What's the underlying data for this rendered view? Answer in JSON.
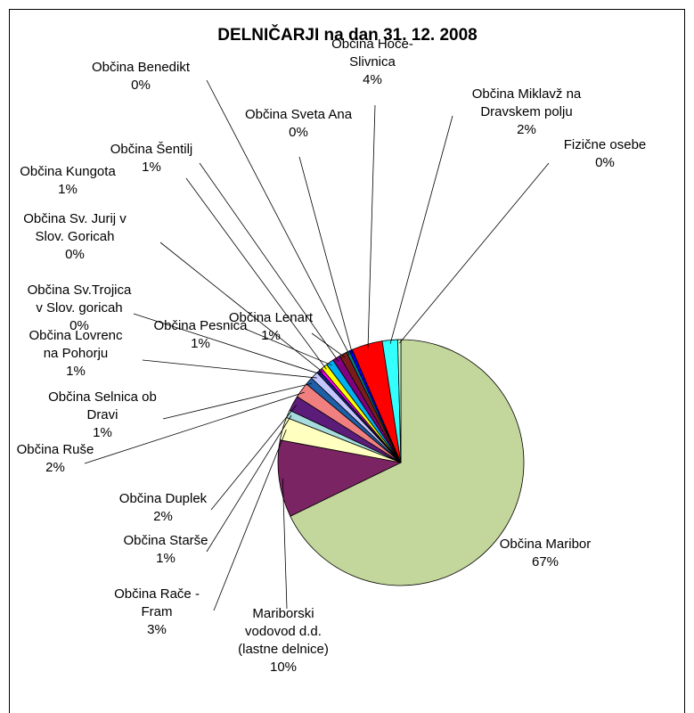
{
  "chart_data": {
    "type": "pie",
    "title": "DELNIČARJI na dan 31. 12. 2008",
    "slices": [
      {
        "label": [
          "Občina Maribor",
          "67%"
        ],
        "value": 67,
        "color": "#c3d69b"
      },
      {
        "label": [
          "Mariborski",
          "vodovod d.d.",
          "(lastne delnice)",
          "10%"
        ],
        "value": 10,
        "color": "#7b2463"
      },
      {
        "label": [
          "Občina  Rače -",
          "Fram",
          "3%"
        ],
        "value": 3,
        "color": "#ffffc0"
      },
      {
        "label": [
          "Občina  Starše",
          "1%"
        ],
        "value": 1,
        "color": "#a6dcdc"
      },
      {
        "label": [
          "Občina  Duplek",
          "2%"
        ],
        "value": 2,
        "color": "#5c1c7a"
      },
      {
        "label": [
          "Občina Ruše",
          "2%"
        ],
        "value": 2,
        "color": "#f08080"
      },
      {
        "label": [
          "Občina Selnica ob",
          "Dravi",
          "1%"
        ],
        "value": 1,
        "color": "#1f5fa8"
      },
      {
        "label": [
          "Občina Lovrenc",
          "na Pohorju",
          "1%"
        ],
        "value": 1,
        "color": "#c5c5ff"
      },
      {
        "label": [
          "Občina Sv.Trojica",
          "v Slov. goricah",
          "0%"
        ],
        "value": 0.4,
        "color": "#1a237e"
      },
      {
        "label": [
          "Občina Sv. Jurij v",
          "Slov. Goricah",
          "0%"
        ],
        "value": 0.4,
        "color": "#ff00ff"
      },
      {
        "label": [
          "Občina Kungota",
          "1%"
        ],
        "value": 0.8,
        "color": "#ffff00"
      },
      {
        "label": [
          "Občina Pesnica",
          "1%"
        ],
        "value": 1,
        "color": "#00b0f0"
      },
      {
        "label": [
          "Občina Šentilj",
          "1%"
        ],
        "value": 1,
        "color": "#800080"
      },
      {
        "label": [
          "Občina Lenart",
          "1%"
        ],
        "value": 1,
        "color": "#7b1c1c"
      },
      {
        "label": [
          "Občina Benedikt",
          "0%"
        ],
        "value": 0.4,
        "color": "#008080"
      },
      {
        "label": [
          "Občina Sveta Ana",
          "0%"
        ],
        "value": 0.4,
        "color": "#0000ff"
      },
      {
        "label": [
          "Občina Hoče-",
          "Slivnica",
          "4%"
        ],
        "value": 4,
        "color": "#ff0000"
      },
      {
        "label": [
          "Občina Miklavž na",
          "Dravskem polju",
          "2%"
        ],
        "value": 2,
        "color": "#33ffff"
      },
      {
        "label": [
          "Fizične osebe",
          "0%"
        ],
        "value": 0.4,
        "color": "#ccffcc"
      }
    ]
  }
}
